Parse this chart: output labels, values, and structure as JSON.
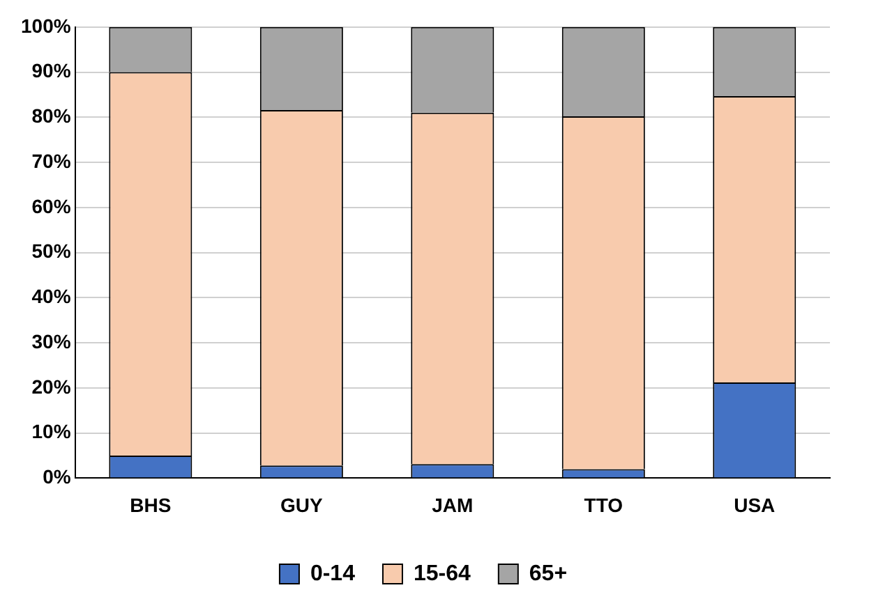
{
  "chart_data": {
    "type": "bar",
    "stacked": true,
    "categories": [
      "BHS",
      "GUY",
      "JAM",
      "TTO",
      "USA"
    ],
    "series": [
      {
        "name": "0-14",
        "color": "#4472c4",
        "values": [
          5,
          2.8,
          3.1,
          2,
          21.2
        ]
      },
      {
        "name": "15-64",
        "color": "#f8cbad",
        "values": [
          85,
          78.8,
          77.9,
          78.2,
          63.5
        ]
      },
      {
        "name": "65+",
        "color": "#a5a5a5",
        "values": [
          10,
          18.4,
          19,
          19.8,
          15.3
        ]
      }
    ],
    "ylim": [
      0,
      100
    ],
    "yticks": [
      {
        "value": 0,
        "label": "0%"
      },
      {
        "value": 10,
        "label": "10%"
      },
      {
        "value": 20,
        "label": "20%"
      },
      {
        "value": 30,
        "label": "30%"
      },
      {
        "value": 40,
        "label": "40%"
      },
      {
        "value": 50,
        "label": "50%"
      },
      {
        "value": 60,
        "label": "60%"
      },
      {
        "value": 70,
        "label": "70%"
      },
      {
        "value": 80,
        "label": "80%"
      },
      {
        "value": 90,
        "label": "90%"
      },
      {
        "value": 100,
        "label": "100%"
      }
    ],
    "grid": "y",
    "legend": "bottom"
  }
}
